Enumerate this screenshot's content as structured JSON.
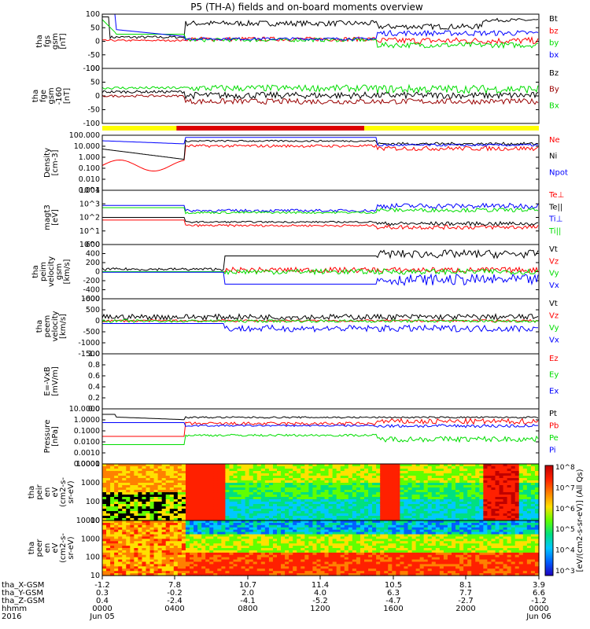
{
  "title": "P5 (TH-A) fields and on-board moments overview",
  "colors": {
    "black": "#000000",
    "red": "#ff0000",
    "green": "#00dd00",
    "blue": "#0000ff",
    "darkred": "#990000",
    "yellow": "#ffff00",
    "barred": "#dd0000"
  },
  "chart_data": [
    {
      "type": "line",
      "panel": "fgs",
      "ylabel": [
        "tha",
        "fgs",
        "gsm",
        "[nT]"
      ],
      "ylim": [
        -100,
        100
      ],
      "ticks": [
        "100",
        "50",
        "0",
        "-50",
        "-100"
      ],
      "series": [
        {
          "name": "Bt",
          "color": "#000000"
        },
        {
          "name": "bz",
          "color": "#ff0000"
        },
        {
          "name": "by",
          "color": "#00dd00"
        },
        {
          "name": "bx",
          "color": "#0000ff"
        }
      ]
    },
    {
      "type": "line",
      "panel": "fge",
      "ylabel": [
        "tha",
        "fge",
        "gsm",
        "-160",
        "[nT]"
      ],
      "ylim": [
        -100,
        100
      ],
      "ticks": [
        "100",
        "50",
        "0",
        "-50",
        "-100"
      ],
      "series": [
        {
          "name": "Bz",
          "color": "#000000"
        },
        {
          "name": "By",
          "color": "#990000"
        },
        {
          "name": "Bx",
          "color": "#00dd00"
        }
      ]
    },
    {
      "type": "line",
      "panel": "density",
      "ylabel": [
        "Density",
        "[cm-3]"
      ],
      "scale": "log",
      "ticks": [
        "100.000",
        "10.000",
        "1.000",
        "0.100",
        "0.010",
        "0.001"
      ],
      "series": [
        {
          "name": "Ne",
          "color": "#ff0000"
        },
        {
          "name": "Ni",
          "color": "#000000"
        },
        {
          "name": "Npot",
          "color": "#0000ff"
        }
      ]
    },
    {
      "type": "line",
      "panel": "temperature",
      "ylabel": [
        "magt3",
        "[eV]"
      ],
      "scale": "log",
      "ticks": [
        "10^4",
        "10^3",
        "10^2",
        "10^1",
        "10^0"
      ],
      "series": [
        {
          "name": "Te⊥",
          "color": "#ff0000"
        },
        {
          "name": "Te||",
          "color": "#000000"
        },
        {
          "name": "Ti⊥",
          "color": "#0000ff"
        },
        {
          "name": "Ti||",
          "color": "#00dd00"
        }
      ]
    },
    {
      "type": "line",
      "panel": "peim",
      "ylabel": [
        "tha",
        "peim",
        "velocity",
        "gsm",
        "[km/s]"
      ],
      "ylim": [
        -600,
        600
      ],
      "ticks": [
        "600",
        "400",
        "200",
        "0",
        "-200",
        "-400",
        "-600"
      ],
      "series": [
        {
          "name": "Vt",
          "color": "#000000"
        },
        {
          "name": "Vz",
          "color": "#ff0000"
        },
        {
          "name": "Vy",
          "color": "#00dd00"
        },
        {
          "name": "Vx",
          "color": "#0000ff"
        }
      ]
    },
    {
      "type": "line",
      "panel": "peem",
      "ylabel": [
        "tha",
        "peem",
        "velocity",
        "[km/s]"
      ],
      "ylim": [
        -1500,
        1000
      ],
      "ticks": [
        "1000",
        "500",
        "0",
        "-500",
        "-1000",
        "-1500"
      ],
      "series": [
        {
          "name": "Vt",
          "color": "#000000"
        },
        {
          "name": "Vz",
          "color": "#ff0000"
        },
        {
          "name": "Vy",
          "color": "#00dd00"
        },
        {
          "name": "Vx",
          "color": "#0000ff"
        }
      ]
    },
    {
      "type": "line",
      "panel": "efield",
      "ylabel": [
        "E=-VxB",
        "[mV/m]"
      ],
      "ylim": [
        0,
        1
      ],
      "ticks": [
        "1.0",
        "0.8",
        "0.6",
        "0.4",
        "0.2",
        "0.0"
      ],
      "series": [
        {
          "name": "Ez",
          "color": "#ff0000"
        },
        {
          "name": "Ey",
          "color": "#00dd00"
        },
        {
          "name": "Ex",
          "color": "#0000ff"
        }
      ]
    },
    {
      "type": "line",
      "panel": "pressure",
      "ylabel": [
        "Pressure",
        "[nPa]"
      ],
      "scale": "log",
      "ticks": [
        "10.0000",
        "1.0000",
        "0.1000",
        "0.0100",
        "0.0010",
        "0.0001"
      ],
      "series": [
        {
          "name": "Pt",
          "color": "#000000"
        },
        {
          "name": "Pb",
          "color": "#ff0000"
        },
        {
          "name": "Pe",
          "color": "#00dd00"
        },
        {
          "name": "Pi",
          "color": "#0000ff"
        }
      ]
    },
    {
      "type": "heatmap",
      "panel": "peir",
      "ylabel": [
        "tha",
        "peir",
        "en",
        "eV",
        "(cm2-s-",
        "sr-eV)"
      ],
      "ticks": [
        "10000",
        "1000",
        "100",
        "10"
      ]
    },
    {
      "type": "heatmap",
      "panel": "peer",
      "ylabel": [
        "tha",
        "peer",
        "en",
        "eV",
        "(cm2-s-",
        "sr-eV)"
      ],
      "ticks": [
        "10000",
        "1000",
        "100",
        "10"
      ]
    }
  ],
  "colorbar": {
    "label": "[eV/(cm2-s-sr-eV)] (All Qs)",
    "ticks": [
      "10^8",
      "10^7",
      "10^6",
      "10^5",
      "10^4",
      "10^3"
    ]
  },
  "xaxis": {
    "rows": [
      {
        "label": "tha_X-GSM",
        "values": [
          "-1.2",
          "7.8",
          "10.7",
          "11.4",
          "10.5",
          "8.1",
          "3.9"
        ]
      },
      {
        "label": "tha_Y-GSM",
        "values": [
          "0.3",
          "-0.2",
          "2.0",
          "4.0",
          "6.3",
          "7.7",
          "6.6"
        ]
      },
      {
        "label": "tha_Z-GSM",
        "values": [
          "0.4",
          "-2.4",
          "-4.1",
          "-5.2",
          "-4.7",
          "-2.7",
          "-1.2"
        ]
      },
      {
        "label": "hhmm",
        "values": [
          "0000",
          "0400",
          "0800",
          "1200",
          "1600",
          "2000",
          "0000"
        ]
      }
    ],
    "year": "2016",
    "dates": [
      "Jun 05",
      "Jun 06"
    ]
  }
}
